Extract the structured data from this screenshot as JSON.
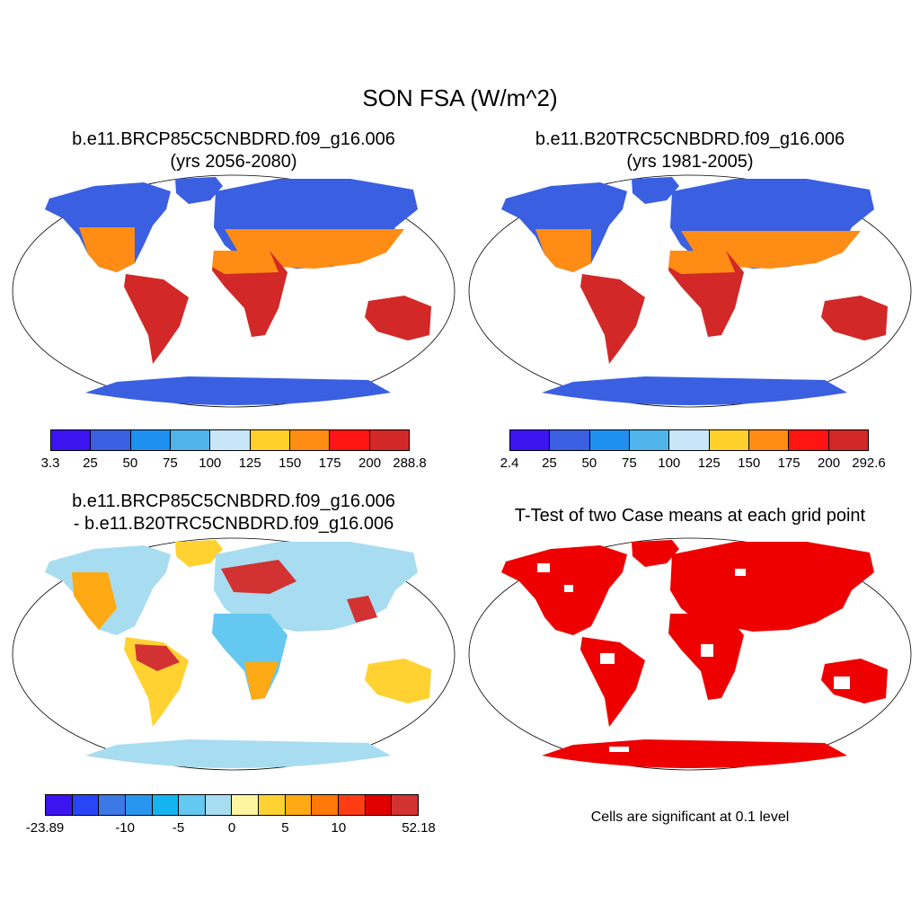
{
  "figure": {
    "title": "SON FSA (W/m^2)",
    "panels": [
      {
        "id": "case",
        "title_line1": "b.e11.BRCP85C5CNBDRD.f09_g16.006",
        "title_line2": "(yrs 2056-2080)",
        "colorbar": {
          "colors": [
            "#3c14f0",
            "#3a5fe0",
            "#1e90f0",
            "#50b4ea",
            "#c8e6f8",
            "#ffd02a",
            "#ff8c14",
            "#ff1414",
            "#d22828"
          ],
          "labels": [
            "3.3",
            "25",
            "50",
            "75",
            "100",
            "125",
            "150",
            "175",
            "200",
            "288.8"
          ]
        }
      },
      {
        "id": "control",
        "title_line1": "b.e11.B20TRC5CNBDRD.f09_g16.006",
        "title_line2": "(yrs 1981-2005)",
        "colorbar": {
          "colors": [
            "#3c14f0",
            "#3a5fe0",
            "#1e90f0",
            "#50b4ea",
            "#c8e6f8",
            "#ffd02a",
            "#ff8c14",
            "#ff1414",
            "#d22828"
          ],
          "labels": [
            "2.4",
            "25",
            "50",
            "75",
            "100",
            "125",
            "150",
            "175",
            "200",
            "292.6"
          ]
        }
      },
      {
        "id": "difference",
        "title_line1": "b.e11.BRCP85C5CNBDRD.f09_g16.006",
        "title_line2": "- b.e11.B20TRC5CNBDRD.f09_g16.006",
        "colorbar": {
          "colors": [
            "#3c14f0",
            "#2846f5",
            "#3c78e6",
            "#2896f0",
            "#14b4f0",
            "#64c8f0",
            "#a8dcf0",
            "#fff5a0",
            "#ffd232",
            "#ffaa14",
            "#ff780a",
            "#ff3c14",
            "#e10000",
            "#d23232"
          ],
          "labels": [
            "-23.89",
            "-10",
            "-5",
            "0",
            "5",
            "10",
            "52.18"
          ]
        }
      },
      {
        "id": "ttest",
        "title_line1": "T-Test of two Case means at each grid point",
        "note": "Cells are significant at 0.1 level",
        "significant_color": "#ee0000"
      }
    ]
  }
}
